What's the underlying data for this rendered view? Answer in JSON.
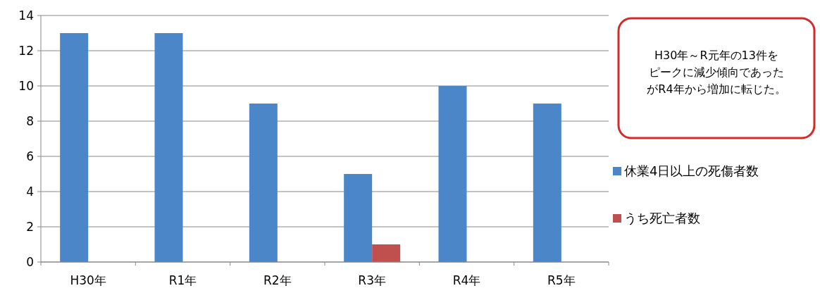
{
  "chart_data": {
    "type": "bar",
    "categories": [
      "H30年",
      "R1年",
      "R2年",
      "R3年",
      "R4年",
      "R5年"
    ],
    "series": [
      {
        "name": "休業4日以上の死傷者数",
        "color": "#4a86c8",
        "values": [
          13,
          13,
          9,
          5,
          10,
          9
        ]
      },
      {
        "name": "うち死亡者数",
        "color": "#c0504d",
        "values": [
          0,
          0,
          0,
          1,
          0,
          0
        ]
      }
    ],
    "ylim": [
      0,
      14
    ],
    "yticks": [
      0,
      2,
      4,
      6,
      8,
      10,
      12,
      14
    ],
    "grid": "y",
    "legend": "right",
    "annotations": [
      "H30年～R元年の13件を",
      "ピークに減少傾向であった",
      "がR4年から増加に転じた。"
    ]
  }
}
